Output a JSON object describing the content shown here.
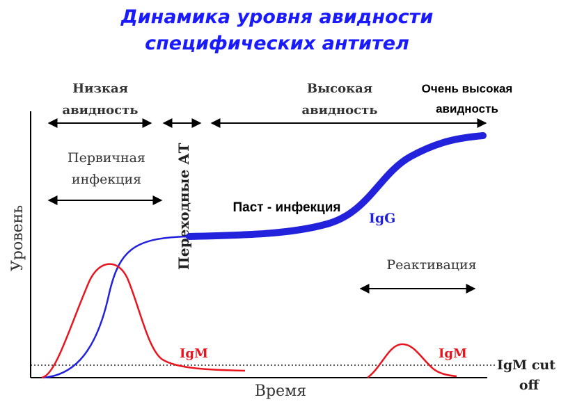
{
  "title_line1": "Динамика уровня авидности",
  "title_line2": "специфических антител",
  "phases": {
    "low_line1": "Низкая",
    "low_line2": "авидность",
    "high_line1": "Высокая",
    "high_line2": "авидность",
    "very_high_line1": "Очень высокая",
    "very_high_line2": "авидность"
  },
  "primary_line1": "Первичная",
  "primary_line2": "инфекция",
  "transitional": "Переходные АТ",
  "past_infection": "Паст - инфекция",
  "igg": "IgG",
  "igm_primary": "IgM",
  "igm_reactivation": "IgM",
  "reactivation": "Реактивация",
  "cutoff_line1": "IgM cut",
  "cutoff_line2": "off",
  "x_axis": "Время",
  "y_axis": "Уровень",
  "colors": {
    "title": "#1a1aff",
    "igg": "#2222dd",
    "igm": "#e8141e",
    "text": "#333333"
  }
}
